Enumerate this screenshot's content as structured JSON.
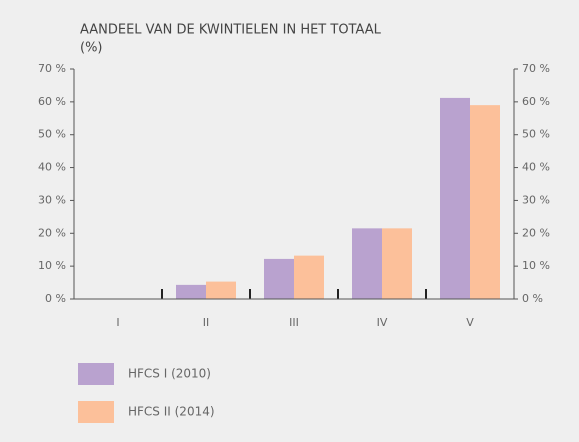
{
  "chart_data": {
    "type": "bar",
    "title": "AANDEEL VAN DE KWINTIELEN IN HET TOTAAL",
    "subtitle": "(%)",
    "categories": [
      "I",
      "II",
      "III",
      "IV",
      "V"
    ],
    "series": [
      {
        "name": "HFCS I (2010)",
        "color": "#b9a2cf",
        "values": [
          0.1,
          4.3,
          12.2,
          21.5,
          61.2
        ]
      },
      {
        "name": "HFCS II (2014)",
        "color": "#fcc09a",
        "values": [
          0.1,
          5.3,
          13.2,
          21.5,
          59.0
        ]
      }
    ],
    "ylim": [
      0,
      70
    ],
    "yticks": [
      {
        "value": 0,
        "label": "0 %"
      },
      {
        "value": 10,
        "label": "10 %"
      },
      {
        "value": 20,
        "label": "20 %"
      },
      {
        "value": 30,
        "label": "30 %"
      },
      {
        "value": 40,
        "label": "40 %"
      },
      {
        "value": 50,
        "label": "50 %"
      },
      {
        "value": 60,
        "label": "60 %"
      },
      {
        "value": 70,
        "label": "70 %"
      }
    ],
    "y2lim": [
      0,
      70
    ],
    "y2ticks": [
      {
        "value": 0,
        "label": "0 %"
      },
      {
        "value": 10,
        "label": "10 %"
      },
      {
        "value": 20,
        "label": "20 %"
      },
      {
        "value": 30,
        "label": "30 %"
      },
      {
        "value": 40,
        "label": "40 %"
      },
      {
        "value": 50,
        "label": "50 %"
      },
      {
        "value": 60,
        "label": "60 %"
      },
      {
        "value": 70,
        "label": "70 %"
      }
    ],
    "legend": "bottom-left"
  }
}
